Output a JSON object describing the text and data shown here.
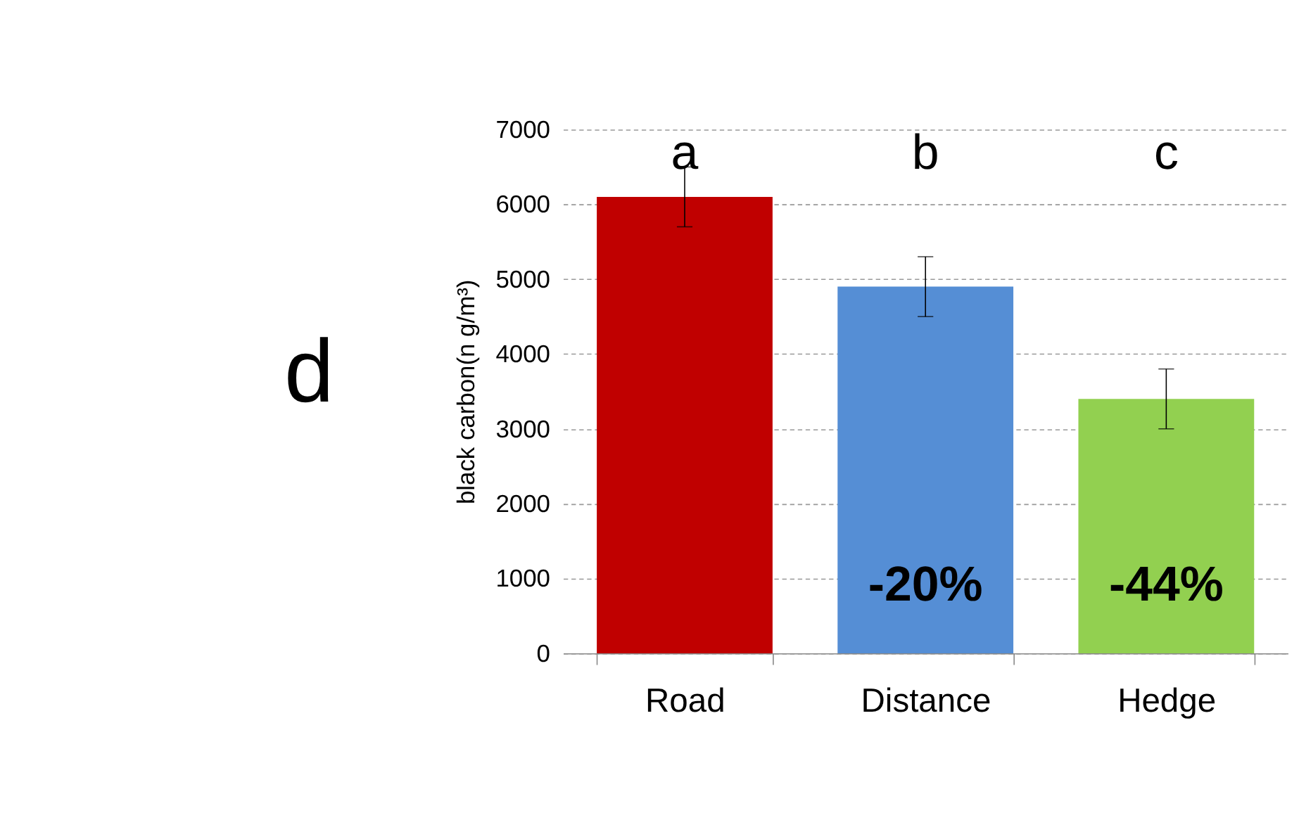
{
  "chart_data": {
    "type": "bar",
    "categories": [
      "Road",
      "Distance",
      "Hedge"
    ],
    "values": [
      6100,
      4900,
      3400
    ],
    "errors": [
      400,
      400,
      400
    ],
    "colors": [
      "#c00000",
      "#558ed5",
      "#92d050"
    ],
    "ylabel": "black carbon(n g/m³)",
    "ylim": [
      0,
      7000
    ],
    "yticks": [
      0,
      1000,
      2000,
      3000,
      4000,
      5000,
      6000,
      7000
    ],
    "grid": "y",
    "annotations": [
      "d",
      "a",
      "b",
      "c",
      "-20%",
      "-44%"
    ]
  }
}
